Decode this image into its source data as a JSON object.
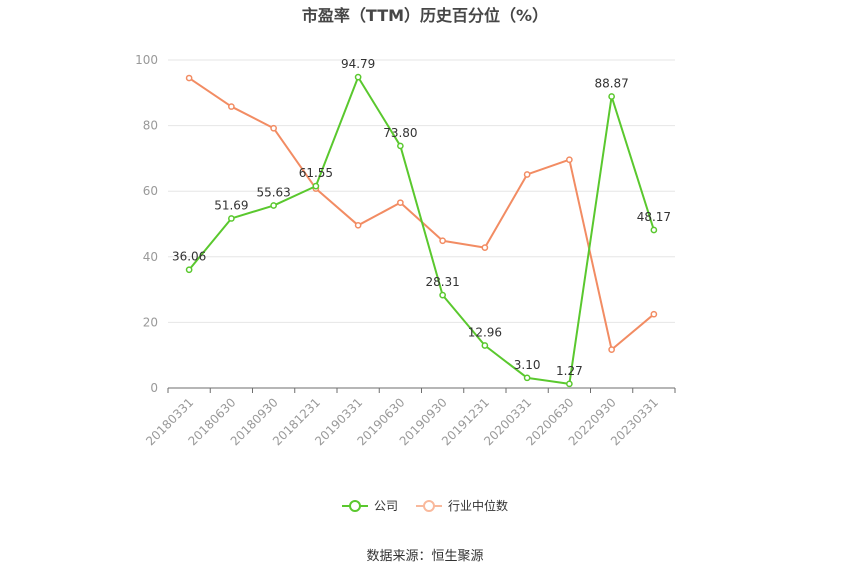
{
  "title": "市盈率（TTM）历史百分位（%）",
  "source": "数据来源：恒生聚源",
  "chart_data": {
    "type": "line",
    "title": "市盈率（TTM）历史百分位（%）",
    "xlabel": "",
    "ylabel": "",
    "ylim": [
      0,
      100
    ],
    "yticks": [
      0,
      20,
      40,
      60,
      80,
      100
    ],
    "grid": true,
    "legend_position": "bottom",
    "categories": [
      "20180331",
      "20180630",
      "20180930",
      "20181231",
      "20190331",
      "20190630",
      "20190930",
      "20191231",
      "20200331",
      "20200630",
      "20220930",
      "20230331"
    ],
    "series": [
      {
        "name": "公司",
        "color": "#5ac82e",
        "values": [
          36.06,
          51.69,
          55.63,
          61.55,
          94.79,
          73.8,
          28.31,
          12.96,
          3.1,
          1.27,
          88.87,
          48.17
        ],
        "labels": [
          "36.06",
          "51.69",
          "55.63",
          "61.55",
          "94.79",
          "73.80",
          "28.31",
          "12.96",
          "3.10",
          "1.27",
          "88.87",
          "48.17"
        ]
      },
      {
        "name": "行业中位数",
        "color": "#f28c63",
        "values": [
          94.5,
          85.8,
          79.2,
          60.8,
          49.6,
          56.5,
          44.9,
          42.8,
          65.1,
          69.6,
          11.7,
          22.5
        ]
      }
    ]
  }
}
